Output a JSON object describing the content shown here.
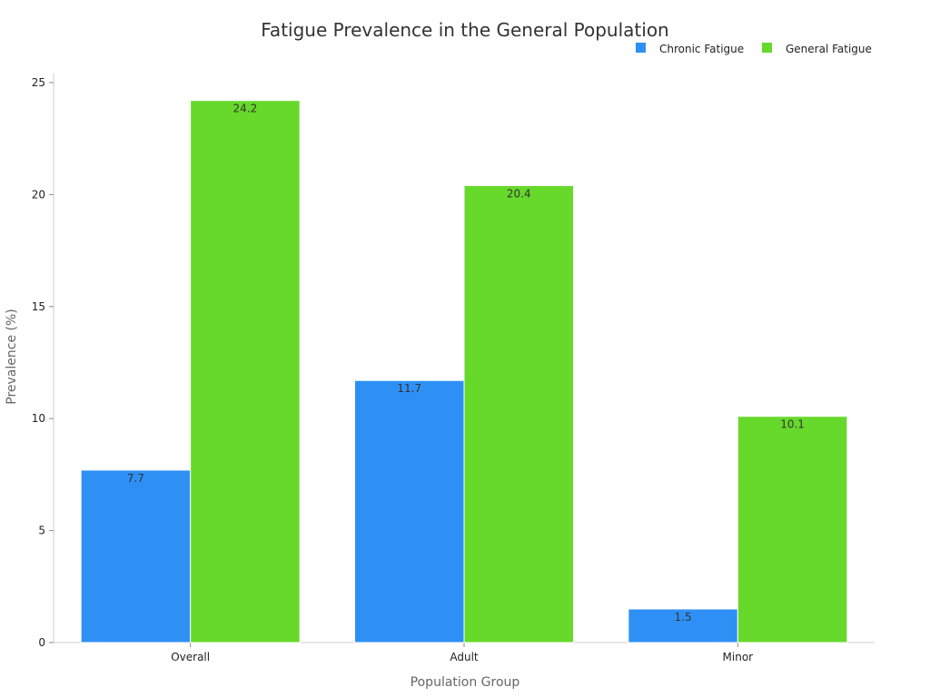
{
  "chart_data": {
    "type": "bar",
    "title": "Fatigue Prevalence in the General Population",
    "xlabel": "Population Group",
    "ylabel": "Prevalence (%)",
    "categories": [
      "Overall",
      "Adult",
      "Minor"
    ],
    "series": [
      {
        "name": "Chronic Fatigue",
        "values": [
          7.7,
          11.7,
          1.5
        ],
        "color": "#2e90f5"
      },
      {
        "name": "General Fatigue",
        "values": [
          24.2,
          20.4,
          10.1
        ],
        "color": "#66d92a"
      }
    ],
    "ylim": [
      0,
      25.4
    ],
    "yticks": [
      0,
      5,
      10,
      15,
      20,
      25
    ],
    "grid": false,
    "legend": "top-right"
  }
}
